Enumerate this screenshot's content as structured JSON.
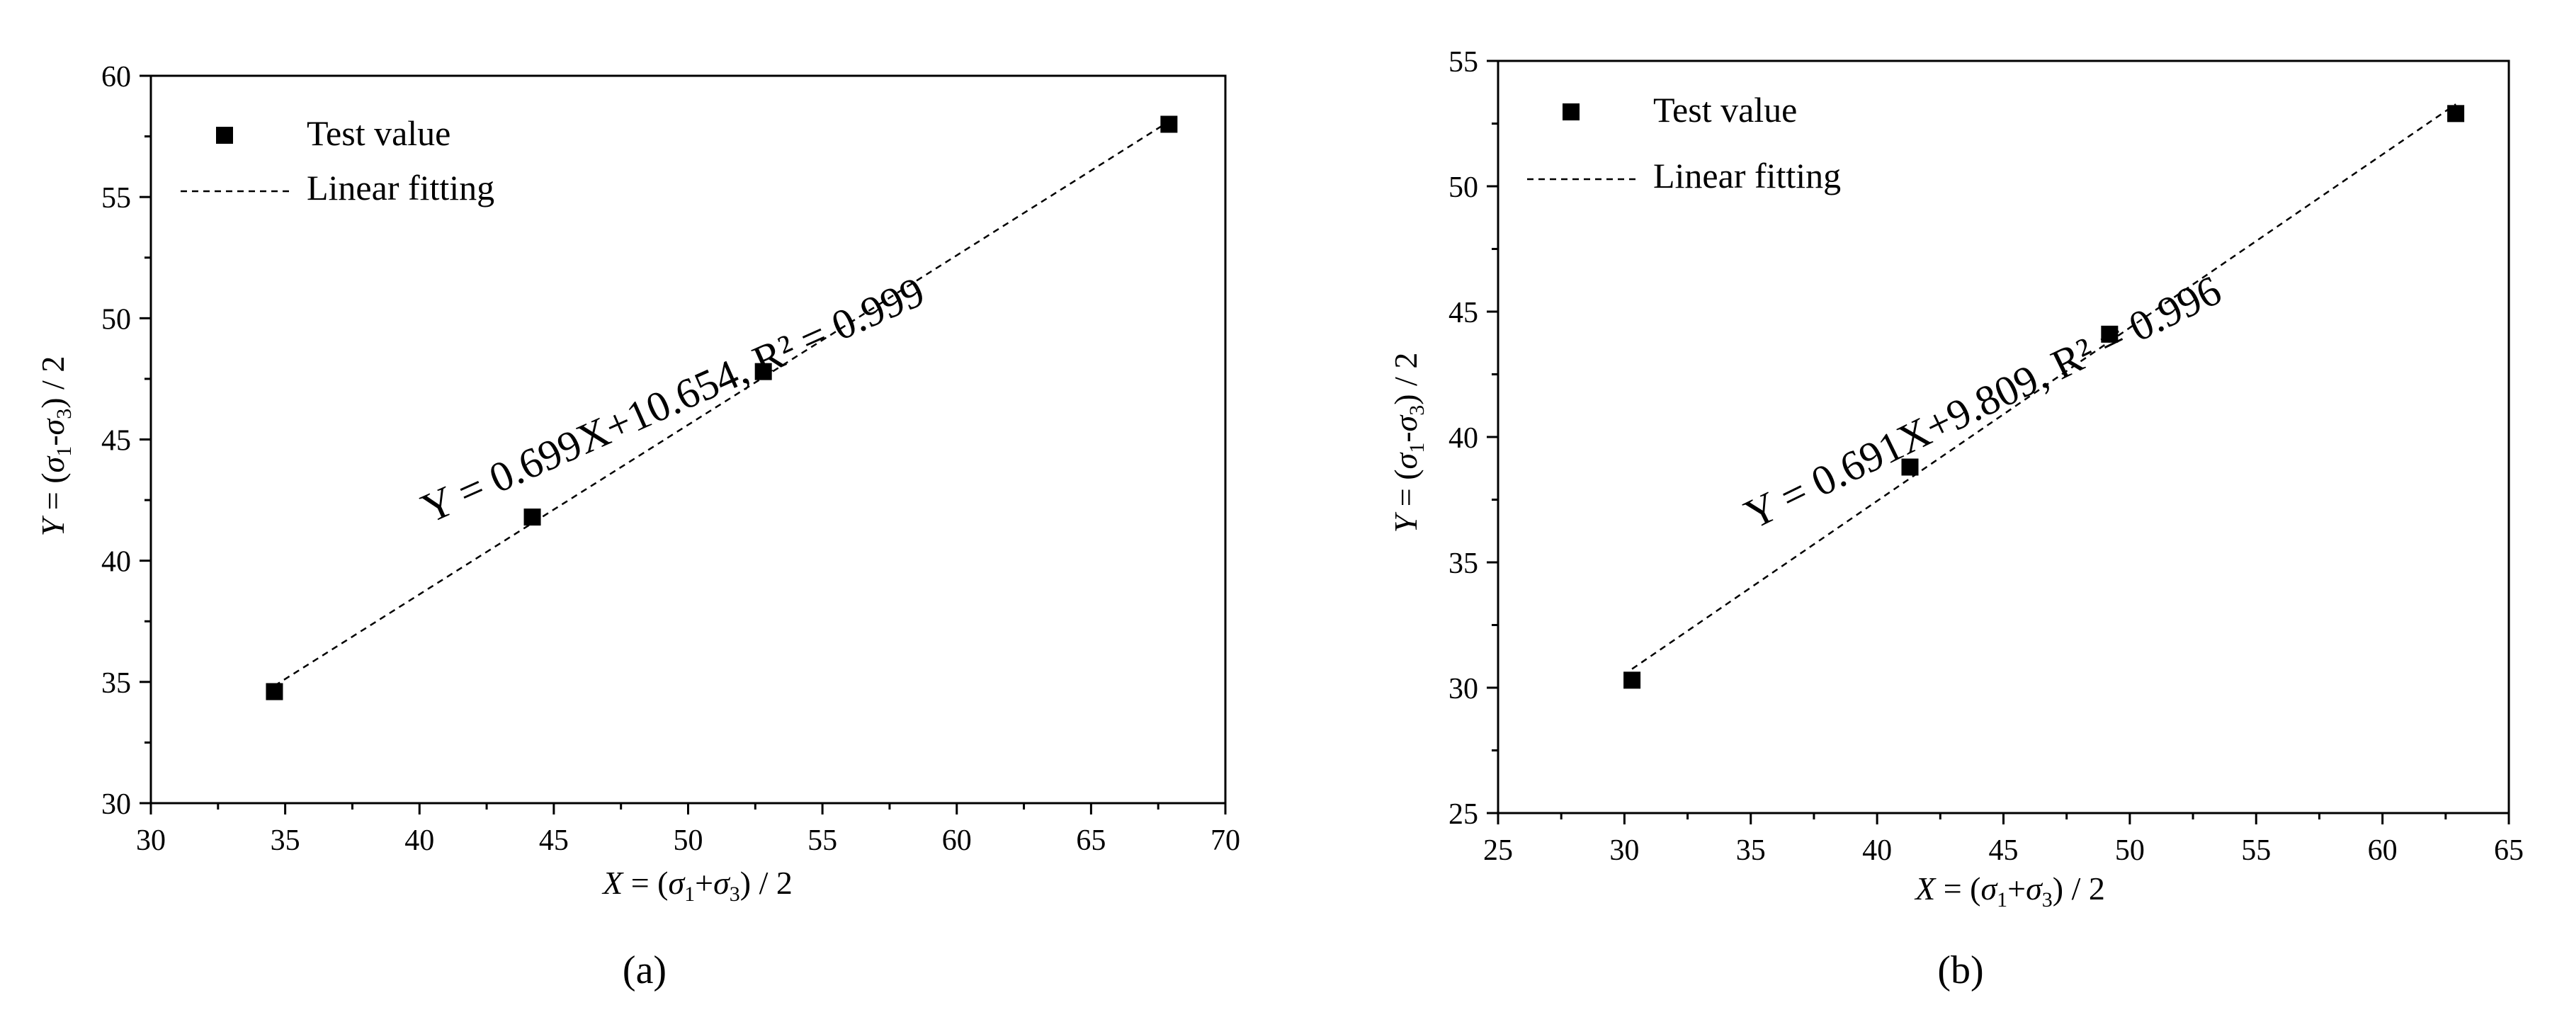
{
  "chart_data": [
    {
      "type": "scatter",
      "subplot_label": "(a)",
      "xlabel": "X = (σ1+σ3) / 2",
      "ylabel": "Y = (σ1-σ3) / 2",
      "xlim": [
        30,
        70
      ],
      "ylim": [
        30,
        60
      ],
      "xticks": [
        "30",
        "35",
        "40",
        "45",
        "50",
        "55",
        "60",
        "65",
        "70"
      ],
      "yticks": [
        "30",
        "35",
        "40",
        "45",
        "50",
        "55",
        "60"
      ],
      "legend": {
        "position": "top-left",
        "entries": [
          "Test value",
          "Linear fitting"
        ]
      },
      "annotation": "Y = 0.699X+10.654, R² = 0.999",
      "series": [
        {
          "name": "Test value",
          "kind": "scatter",
          "x": [
            34.6,
            44.2,
            52.8,
            67.9
          ],
          "y": [
            34.6,
            41.8,
            47.8,
            58.0
          ]
        },
        {
          "name": "Linear fitting",
          "kind": "line",
          "style": "dashed",
          "slope": 0.699,
          "intercept": 10.654,
          "x_range": [
            34.6,
            67.9
          ]
        }
      ],
      "grid": false
    },
    {
      "type": "scatter",
      "subplot_label": "(b)",
      "xlabel": "X = (σ1+σ3) / 2",
      "ylabel": "Y = (σ1-σ3) / 2",
      "xlim": [
        25,
        65
      ],
      "ylim": [
        25,
        55
      ],
      "xticks": [
        "25",
        "30",
        "35",
        "40",
        "45",
        "50",
        "55",
        "60",
        "65"
      ],
      "yticks": [
        "25",
        "30",
        "35",
        "40",
        "45",
        "50",
        "55"
      ],
      "legend": {
        "position": "top-left",
        "entries": [
          "Test value",
          "Linear fitting"
        ]
      },
      "annotation": "Y = 0.691X+9.809, R² = 0.996",
      "series": [
        {
          "name": "Test value",
          "kind": "scatter",
          "x": [
            30.3,
            41.3,
            49.2,
            62.9
          ],
          "y": [
            30.3,
            38.8,
            44.1,
            52.9
          ]
        },
        {
          "name": "Linear fitting",
          "kind": "line",
          "style": "dashed",
          "slope": 0.691,
          "intercept": 9.809,
          "x_range": [
            30.3,
            62.9
          ]
        }
      ],
      "grid": false
    }
  ]
}
